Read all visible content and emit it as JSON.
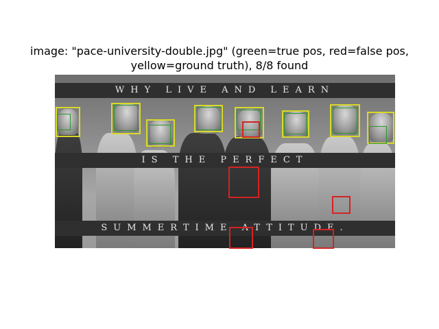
{
  "title": {
    "line1": "image: \"pace-university-double.jpg\" (green=true pos, red=false pos,",
    "line2": "yellow=ground truth), 8/8 found"
  },
  "photo": {
    "slogan_line1": "WHY LIVE AND LEARN",
    "slogan_line2": "IS THE PERFECT",
    "slogan_line3": "SUMMERTIME ATTITUDE."
  },
  "legend_colors": {
    "true_pos": "#2b9a2b",
    "false_pos": "#d62222",
    "ground_truth": "#d9d92a"
  }
}
